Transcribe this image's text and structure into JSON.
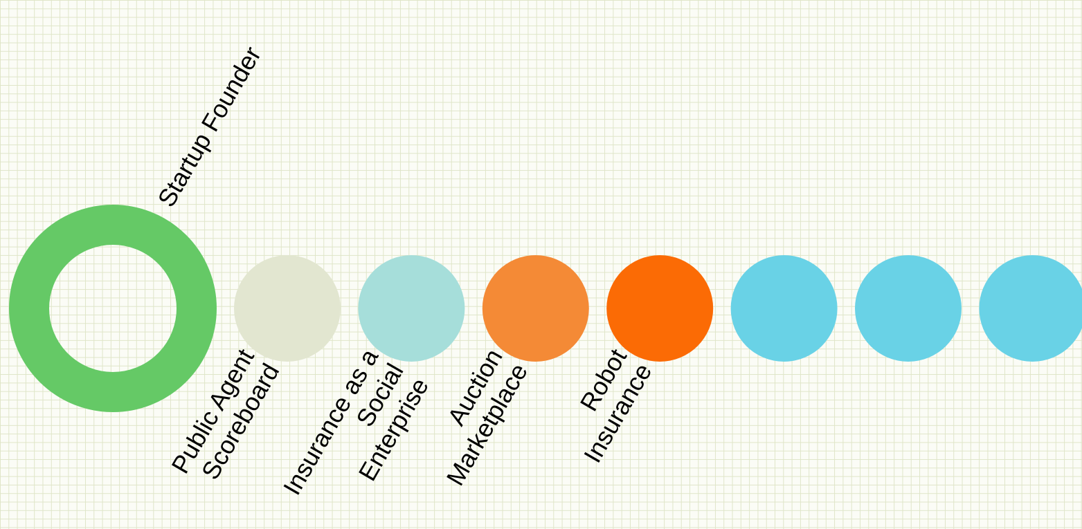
{
  "diagram": {
    "main_node": {
      "label": "Startup Founder",
      "color": "#65c966"
    },
    "nodes": [
      {
        "lines": [
          "Public Agent",
          "Scoreboard"
        ],
        "color": "#e2e6d0"
      },
      {
        "lines": [
          "Insurance as a",
          "Social",
          "Enterprise"
        ],
        "color": "#a6deda"
      },
      {
        "lines": [
          "Auction",
          "Marketplace"
        ],
        "color": "#f48a36"
      },
      {
        "lines": [
          "Robot",
          "Insurance"
        ],
        "color": "#fb6b05"
      },
      {
        "lines": [],
        "color": "#69d2e6"
      },
      {
        "lines": [],
        "color": "#69d2e6"
      },
      {
        "lines": [],
        "color": "#69d2e6"
      }
    ]
  }
}
